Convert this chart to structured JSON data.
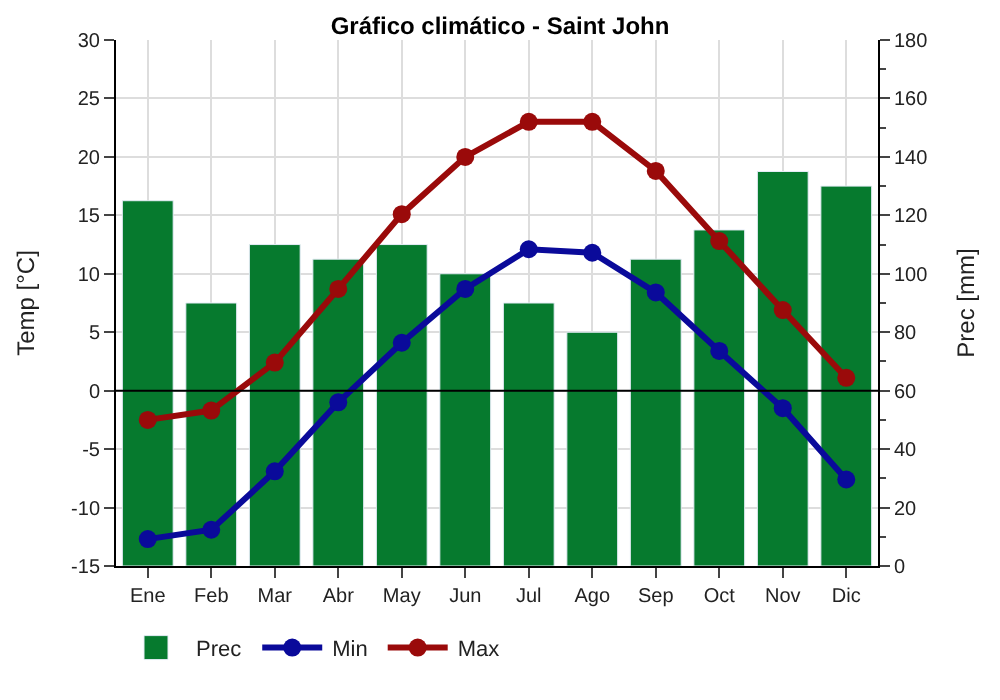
{
  "chart_data": {
    "type": "line",
    "title": "Gráfico climático - Saint John",
    "ylabel": "Temp [°C]",
    "y2label": "Prec [mm]",
    "categories": [
      "Ene",
      "Feb",
      "Mar",
      "Abr",
      "May",
      "Jun",
      "Jul",
      "Ago",
      "Sep",
      "Oct",
      "Nov",
      "Dic"
    ],
    "series": [
      {
        "name": "Prec",
        "type": "bar",
        "axis": "y2",
        "color": "#067a2e",
        "values": [
          125,
          90,
          110,
          105,
          110,
          100,
          90,
          80,
          105,
          115,
          135,
          130
        ]
      },
      {
        "name": "Min",
        "color": "#0a0a9a",
        "values": [
          -12.7,
          -11.9,
          -6.9,
          -1,
          4.1,
          8.7,
          12.1,
          11.8,
          8.4,
          3.4,
          -1.5,
          -7.6
        ]
      },
      {
        "name": "Max",
        "color": "#9a0a0a",
        "values": [
          -2.5,
          -1.7,
          2.4,
          8.7,
          15.1,
          20,
          23,
          23,
          18.8,
          12.8,
          6.9,
          1.1
        ]
      }
    ],
    "ylim": [
      -15,
      30
    ],
    "yticks": [
      -15,
      -10,
      -5,
      0,
      5,
      10,
      15,
      20,
      25,
      30
    ],
    "y2lim": [
      0,
      180
    ],
    "y2ticks": [
      0,
      20,
      40,
      60,
      80,
      100,
      120,
      140,
      160,
      180
    ],
    "ref_lines": [
      {
        "axis": "y",
        "value": 0,
        "color": "#000000"
      }
    ],
    "grid": true,
    "legend": "bottom left",
    "marker": "circle",
    "line_style": "solid"
  }
}
